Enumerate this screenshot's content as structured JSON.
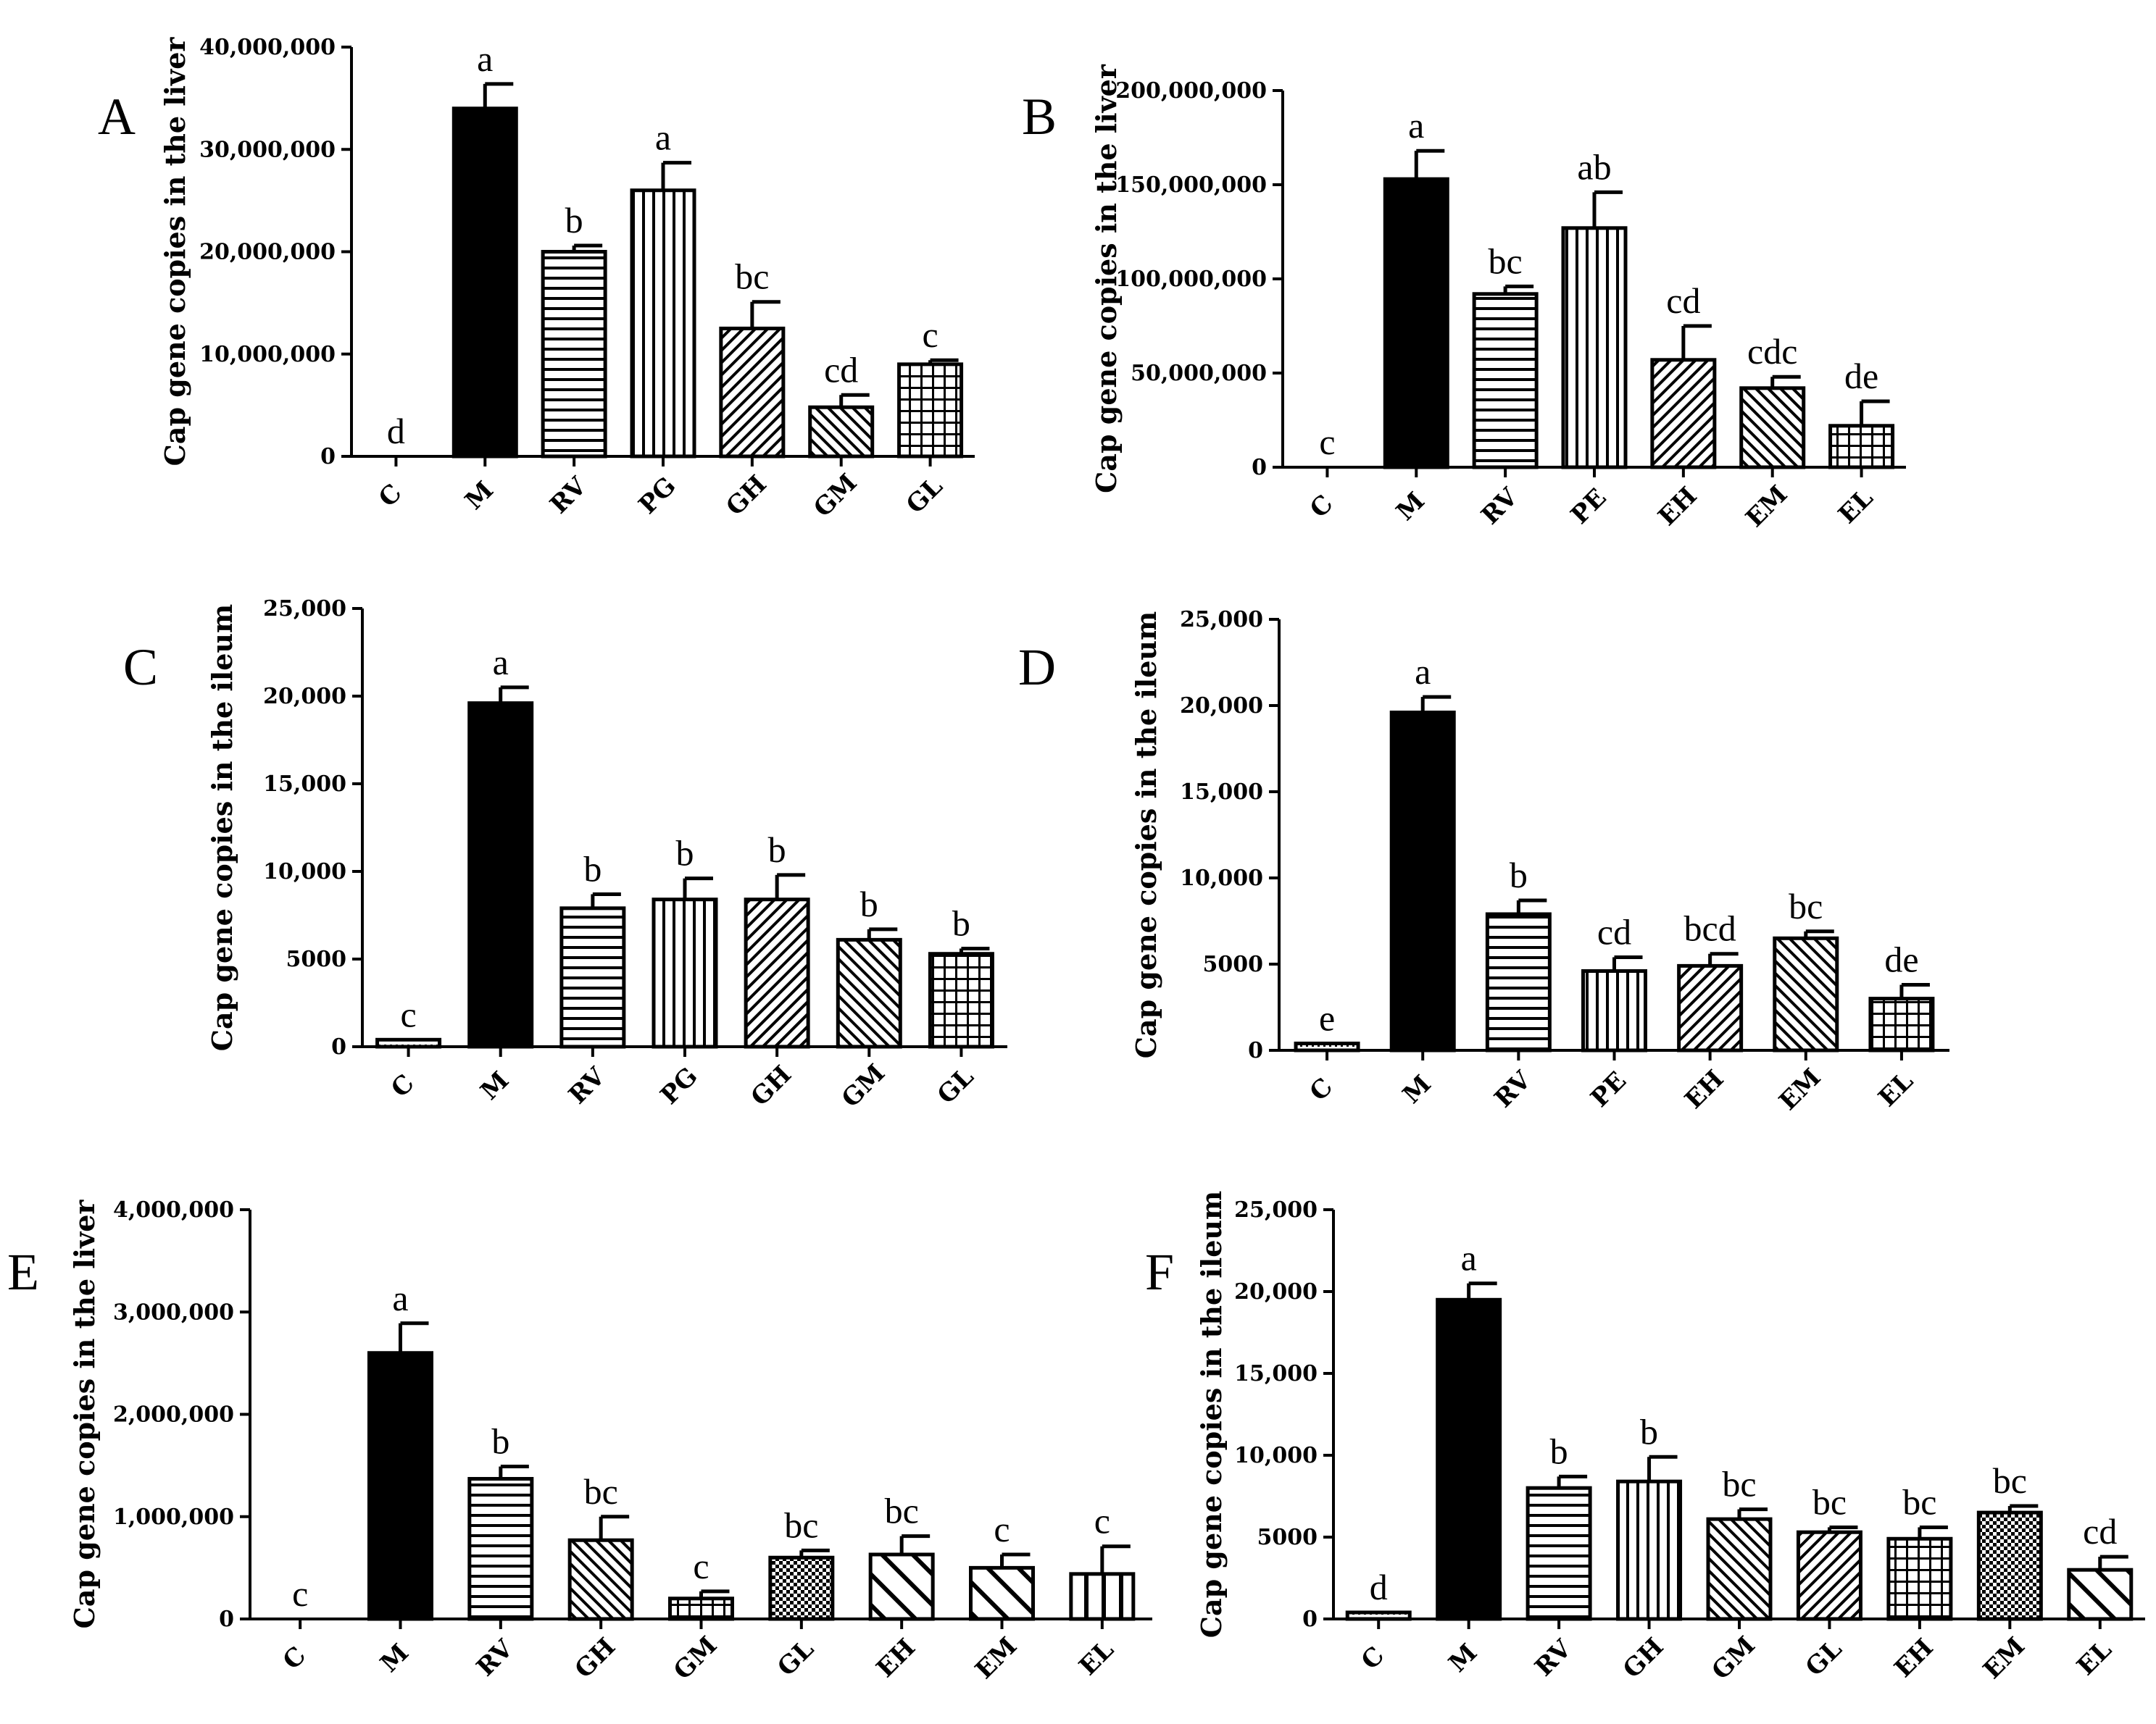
{
  "chart_data": [
    {
      "panel": "A",
      "type": "bar",
      "ylabel": "Cap gene copies in the liver",
      "ylim": [
        0,
        40000000
      ],
      "yticks": [
        "0",
        "10,000,000",
        "20,000,000",
        "30,000,000",
        "40,000,000"
      ],
      "categories": [
        "C",
        "M",
        "RV",
        "PG",
        "GH",
        "GM",
        "GL"
      ],
      "values": [
        0,
        34000000,
        20000000,
        26000000,
        12500000,
        4800000,
        9000000
      ],
      "errors": [
        0,
        2400000,
        600000,
        2700000,
        2600000,
        1200000,
        400000
      ],
      "letters": [
        "d",
        "a",
        "b",
        "a",
        "bc",
        "cd",
        "c"
      ],
      "patterns": [
        "dots",
        "solid",
        "hlines",
        "vlines",
        "diag",
        "diag2",
        "grid"
      ]
    },
    {
      "panel": "B",
      "type": "bar",
      "ylabel": "Cap gene copies in the liver",
      "ylim": [
        0,
        200000000
      ],
      "yticks": [
        "0",
        "50,000,000",
        "100,000,000",
        "150,000,000",
        "200,000,000"
      ],
      "categories": [
        "C",
        "M",
        "RV",
        "PE",
        "EH",
        "EM",
        "EL"
      ],
      "values": [
        0,
        153000000,
        92000000,
        127000000,
        57000000,
        42000000,
        22000000
      ],
      "errors": [
        0,
        15000000,
        4000000,
        19000000,
        18000000,
        6000000,
        13000000
      ],
      "letters": [
        "c",
        "a",
        "bc",
        "ab",
        "cd",
        "cdc",
        "de"
      ],
      "patterns": [
        "dots",
        "solid",
        "hlines",
        "vlines",
        "diag",
        "diag2",
        "grid"
      ]
    },
    {
      "panel": "C",
      "type": "bar",
      "ylabel": "Cap gene copies in the ileum",
      "ylim": [
        0,
        25000
      ],
      "yticks": [
        "0",
        "5000",
        "10,000",
        "15,000",
        "20,000",
        "25,000"
      ],
      "categories": [
        "C",
        "M",
        "RV",
        "PG",
        "GH",
        "GM",
        "GL"
      ],
      "values": [
        400,
        19600,
        7900,
        8400,
        8400,
        6100,
        5300
      ],
      "errors": [
        0,
        900,
        800,
        1200,
        1400,
        600,
        300
      ],
      "letters": [
        "c",
        "a",
        "b",
        "b",
        "b",
        "b",
        "b"
      ],
      "patterns": [
        "dots",
        "solid",
        "hlines",
        "vlines",
        "diag",
        "diag2",
        "grid"
      ]
    },
    {
      "panel": "D",
      "type": "bar",
      "ylabel": "Cap gene copies in the ileum",
      "ylim": [
        0,
        25000
      ],
      "yticks": [
        "0",
        "5000",
        "10,000",
        "15,000",
        "20,000",
        "25,000"
      ],
      "categories": [
        "C",
        "M",
        "RV",
        "PE",
        "EH",
        "EM",
        "EL"
      ],
      "values": [
        400,
        19600,
        7900,
        4600,
        4900,
        6500,
        3000
      ],
      "errors": [
        0,
        900,
        800,
        800,
        700,
        400,
        800
      ],
      "letters": [
        "e",
        "a",
        "b",
        "cd",
        "bcd",
        "bc",
        "de"
      ],
      "patterns": [
        "dots",
        "solid",
        "hlines",
        "vlines",
        "diag",
        "diag2",
        "grid"
      ]
    },
    {
      "panel": "E",
      "type": "bar",
      "ylabel": "Cap gene copies in the liver",
      "ylim": [
        0,
        4000000
      ],
      "yticks": [
        "0",
        "1,000,000",
        "2,000,000",
        "3,000,000",
        "4,000,000"
      ],
      "categories": [
        "C",
        "M",
        "RV",
        "GH",
        "GM",
        "GL",
        "EH",
        "EM",
        "EL"
      ],
      "values": [
        0,
        2600000,
        1370000,
        770000,
        200000,
        600000,
        630000,
        500000,
        440000
      ],
      "errors": [
        0,
        290000,
        120000,
        230000,
        70000,
        70000,
        180000,
        130000,
        270000
      ],
      "letters": [
        "c",
        "a",
        "b",
        "bc",
        "c",
        "bc",
        "bc",
        "c",
        "c"
      ],
      "patterns": [
        "dots",
        "solid",
        "hlines",
        "diag2",
        "grid",
        "checker",
        "bigdiag",
        "bigdiag",
        "vlines2"
      ]
    },
    {
      "panel": "F",
      "type": "bar",
      "ylabel": "Cap gene copies in the ileum",
      "ylim": [
        0,
        25000
      ],
      "yticks": [
        "0",
        "5000",
        "10,000",
        "15,000",
        "20,000",
        "25,000"
      ],
      "categories": [
        "C",
        "M",
        "RV",
        "GH",
        "GM",
        "GL",
        "EH",
        "EM",
        "EL"
      ],
      "values": [
        400,
        19500,
        8000,
        8400,
        6100,
        5300,
        4900,
        6500,
        3000
      ],
      "errors": [
        0,
        1000,
        700,
        1500,
        600,
        300,
        700,
        400,
        800
      ],
      "letters": [
        "d",
        "a",
        "b",
        "b",
        "bc",
        "bc",
        "bc",
        "bc",
        "cd"
      ],
      "patterns": [
        "dots",
        "solid",
        "hlines",
        "vlines",
        "diag2",
        "diag",
        "grid",
        "checker",
        "bigdiag"
      ]
    }
  ]
}
